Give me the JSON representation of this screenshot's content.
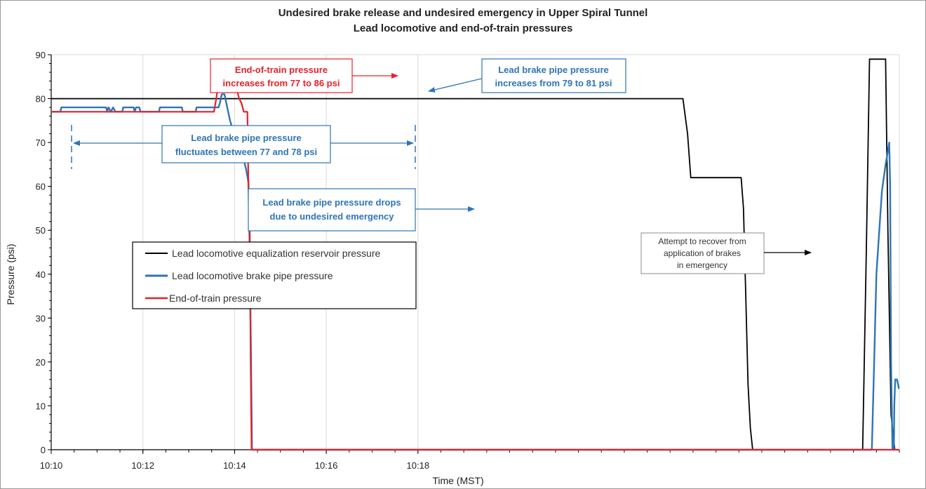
{
  "chart_data": {
    "type": "line",
    "title": "Undesired brake release and undesired emergency in Upper Spiral Tunnel",
    "subtitle": "Lead locomotive and end-of-train pressures",
    "xlabel": "Time (MST)",
    "ylabel": "Pressure (psi)",
    "x_unit": "minutes",
    "xlim": [
      600,
      618.5
    ],
    "ylim": [
      0,
      90
    ],
    "x_ticks": [
      {
        "value": 600,
        "label": "10:10"
      },
      {
        "value": 602,
        "label": "10:12"
      },
      {
        "value": 604,
        "label": "10:14"
      },
      {
        "value": 606,
        "label": "10:16"
      },
      {
        "value": 608,
        "label": "10:18"
      }
    ],
    "y_ticks": [
      0,
      10,
      20,
      30,
      40,
      50,
      60,
      70,
      80,
      90
    ],
    "grid": true,
    "legend_position": "center-left",
    "series": [
      {
        "name": "Lead locomotive equalization reservoir pressure",
        "color": "#000000",
        "points": [
          [
            600,
            80
          ],
          [
            613.78,
            80
          ],
          [
            613.88,
            72
          ],
          [
            613.95,
            62
          ],
          [
            614.3,
            62
          ],
          [
            615.05,
            62
          ],
          [
            615.1,
            55
          ],
          [
            615.15,
            35
          ],
          [
            615.2,
            15
          ],
          [
            615.25,
            5
          ],
          [
            615.3,
            0
          ],
          [
            617.7,
            0
          ],
          [
            617.78,
            45
          ],
          [
            617.85,
            89
          ],
          [
            618.2,
            89
          ],
          [
            618.25,
            50
          ],
          [
            618.32,
            8
          ],
          [
            618.4,
            0
          ],
          [
            618.5,
            0
          ]
        ]
      },
      {
        "name": "Lead locomotive brake pipe pressure",
        "color": "#2e75b6",
        "points": [
          [
            600,
            77
          ],
          [
            600.2,
            77
          ],
          [
            600.22,
            78
          ],
          [
            601.2,
            78
          ],
          [
            601.22,
            77
          ],
          [
            601.25,
            78
          ],
          [
            601.3,
            77
          ],
          [
            601.35,
            78
          ],
          [
            601.4,
            77
          ],
          [
            601.55,
            77
          ],
          [
            601.57,
            78
          ],
          [
            601.8,
            78
          ],
          [
            601.82,
            77
          ],
          [
            601.85,
            78
          ],
          [
            601.92,
            78
          ],
          [
            601.95,
            77
          ],
          [
            602.35,
            77
          ],
          [
            602.37,
            78
          ],
          [
            602.85,
            78
          ],
          [
            602.87,
            77
          ],
          [
            603.15,
            77
          ],
          [
            603.17,
            78
          ],
          [
            603.65,
            78
          ],
          [
            603.68,
            79
          ],
          [
            603.72,
            81
          ],
          [
            603.78,
            81
          ],
          [
            603.82,
            79
          ],
          [
            603.9,
            75
          ],
          [
            604.05,
            70
          ],
          [
            604.15,
            68
          ],
          [
            604.2,
            66
          ],
          [
            604.25,
            64
          ],
          [
            604.3,
            61
          ],
          [
            604.33,
            45
          ],
          [
            604.36,
            20
          ],
          [
            604.38,
            0
          ],
          [
            617.9,
            0
          ],
          [
            617.95,
            20
          ],
          [
            618.0,
            40
          ],
          [
            618.05,
            48
          ],
          [
            618.12,
            59
          ],
          [
            618.2,
            65
          ],
          [
            618.25,
            68
          ],
          [
            618.28,
            70
          ],
          [
            618.3,
            60
          ],
          [
            618.32,
            20
          ],
          [
            618.35,
            0
          ],
          [
            618.38,
            0
          ],
          [
            618.39,
            10
          ],
          [
            618.41,
            16
          ],
          [
            618.45,
            16
          ],
          [
            618.47,
            15
          ],
          [
            618.49,
            14
          ],
          [
            618.5,
            14
          ]
        ]
      },
      {
        "name": "End-of-train pressure",
        "color": "#e8212a",
        "points": [
          [
            600,
            77
          ],
          [
            603.55,
            77
          ],
          [
            603.6,
            80
          ],
          [
            603.65,
            84
          ],
          [
            603.68,
            86
          ],
          [
            603.72,
            86
          ],
          [
            603.75,
            84
          ],
          [
            604.0,
            84
          ],
          [
            604.05,
            82
          ],
          [
            604.1,
            80
          ],
          [
            604.15,
            79
          ],
          [
            604.2,
            77
          ],
          [
            604.28,
            77
          ],
          [
            604.3,
            62
          ],
          [
            604.33,
            52
          ],
          [
            604.35,
            20
          ],
          [
            604.37,
            0
          ],
          [
            618.5,
            0
          ]
        ]
      }
    ],
    "legend": {
      "items": [
        {
          "label": "Lead locomotive equalization reservoir pressure",
          "color": "#000000"
        },
        {
          "label": "Lead locomotive brake pipe pressure",
          "color": "#2e75b6"
        },
        {
          "label": "End-of-train pressure",
          "color": "#e8212a"
        }
      ]
    },
    "annotations": [
      {
        "id": "eot-increase",
        "lines": [
          "End-of-train pressure",
          "increases from 77 to 86 psi"
        ],
        "color": "#e8212a",
        "border": "#e8212a"
      },
      {
        "id": "bp-increase",
        "lines": [
          "Lead brake pipe pressure",
          "increases from 79 to 81 psi"
        ],
        "color": "#2e75b6",
        "border": "#2e75b6"
      },
      {
        "id": "bp-fluctuate",
        "lines": [
          "Lead brake pipe pressure",
          "fluctuates between 77 and 78 psi"
        ],
        "color": "#2e75b6",
        "border": "#2e75b6"
      },
      {
        "id": "bp-drop",
        "lines": [
          "Lead brake pipe pressure drops",
          "due to undesired emergency"
        ],
        "color": "#2e75b6",
        "border": "#2e75b6"
      },
      {
        "id": "recover",
        "lines": [
          "Attempt to recover from",
          "application of brakes",
          "in emergency"
        ],
        "color": "#333333",
        "border": "#8c8c8c"
      }
    ]
  }
}
